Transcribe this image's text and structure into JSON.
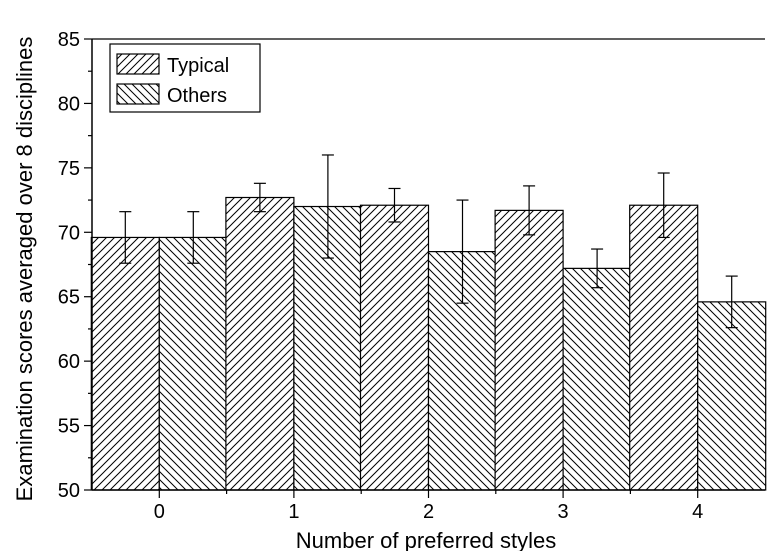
{
  "chart_data": {
    "type": "bar",
    "title": "",
    "xlabel": "Number of preferred styles",
    "ylabel": "Examination scores averaged over 8 disciplines",
    "categories": [
      "0",
      "1",
      "2",
      "3",
      "4"
    ],
    "ylim": [
      50,
      85
    ],
    "yticks": [
      "50",
      "55",
      "60",
      "65",
      "70",
      "75",
      "80",
      "85"
    ],
    "grid": false,
    "legend_position": "top-left",
    "series": [
      {
        "name": "Typical",
        "pattern": "forward-diagonal-hatch",
        "values": [
          69.6,
          72.7,
          72.1,
          71.7,
          72.1
        ],
        "error": [
          2.0,
          1.1,
          1.3,
          1.9,
          2.5
        ]
      },
      {
        "name": "Others",
        "pattern": "backward-diagonal-hatch",
        "values": [
          69.6,
          72.0,
          68.5,
          67.2,
          64.6
        ],
        "error": [
          2.0,
          4.0,
          4.0,
          1.5,
          2.0
        ]
      }
    ],
    "colors": {
      "stroke": "#000000",
      "background": "#ffffff"
    }
  }
}
